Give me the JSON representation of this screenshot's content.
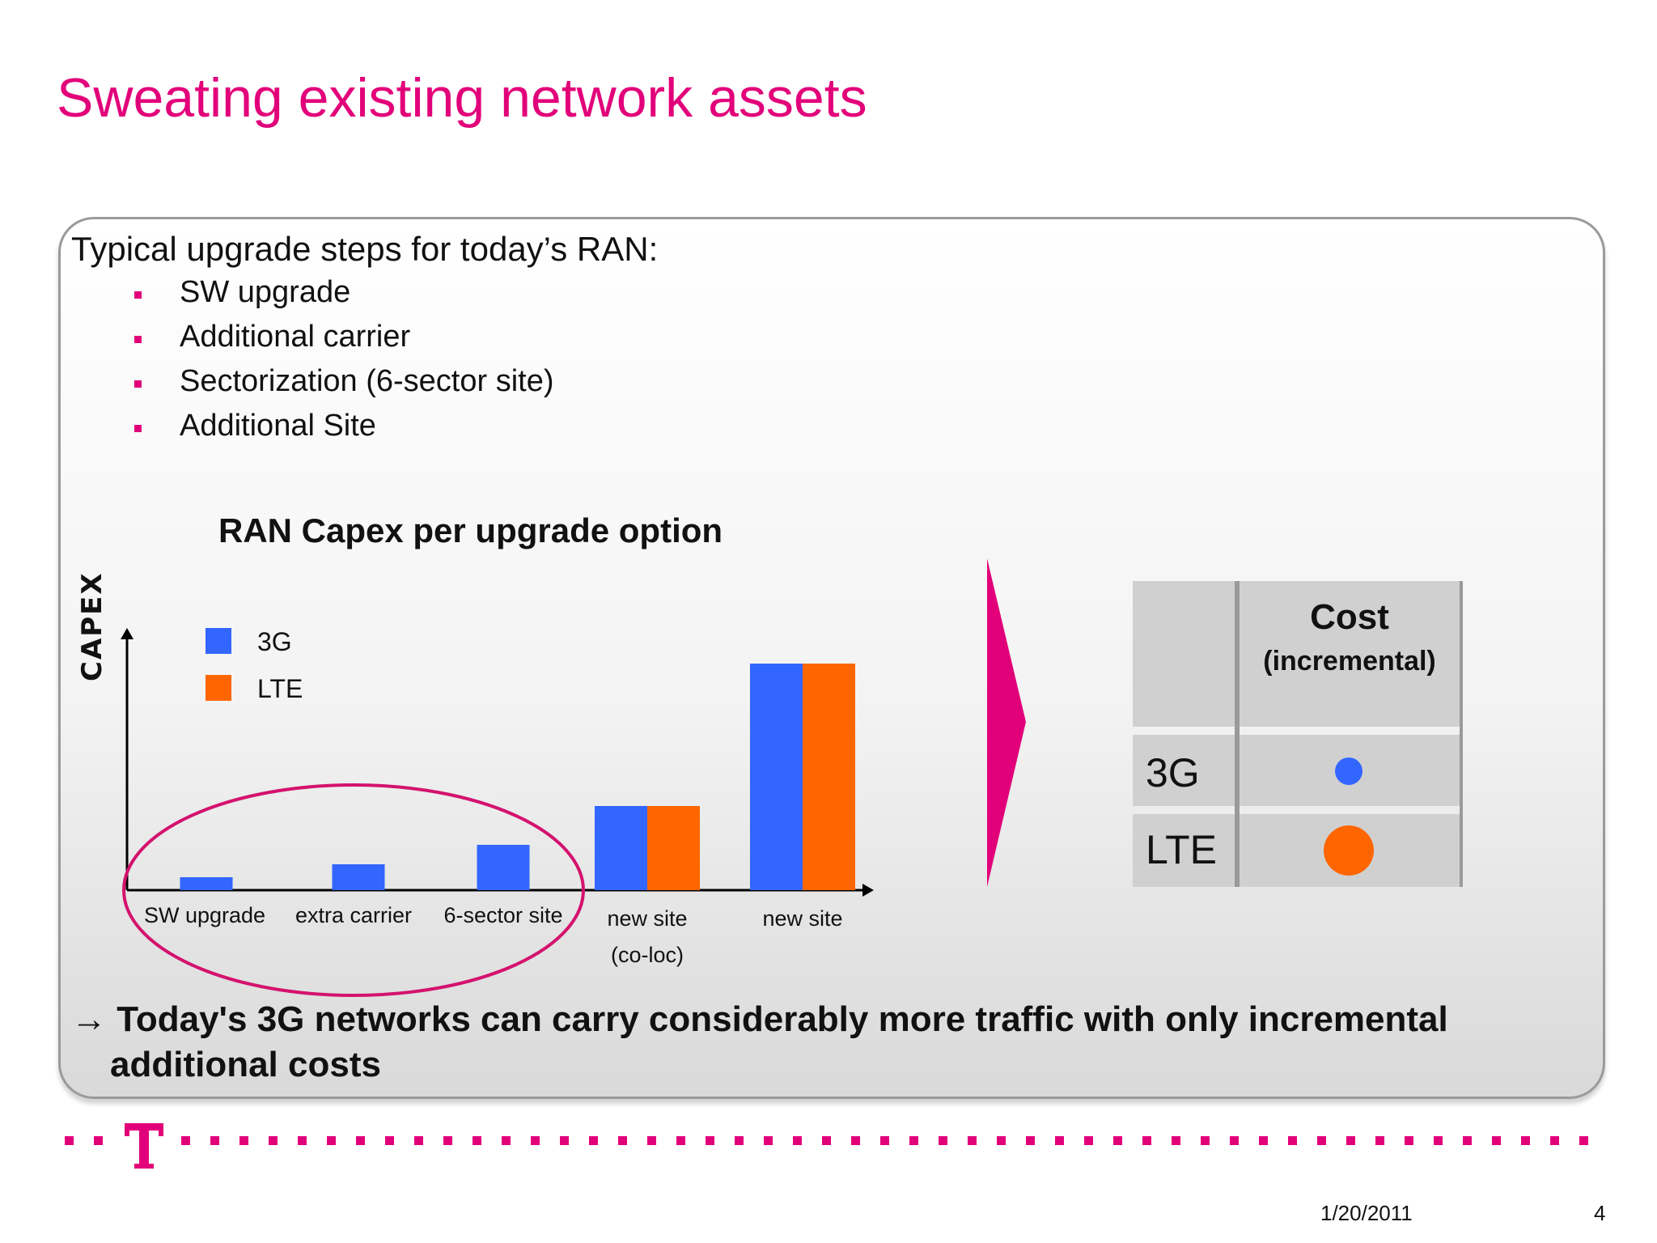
{
  "slide": {
    "title": "Sweating existing network assets",
    "intro": "Typical upgrade steps for today’s RAN:",
    "bullets": [
      "SW upgrade",
      "Additional carrier",
      "Sectorization (6-sector site)",
      "Additional Site"
    ],
    "conclusion_arrow": "→",
    "conclusion_line1": "Today's 3G networks can carry considerably more traffic with only incremental",
    "conclusion_line2": "additional costs",
    "date": "1/20/2011",
    "page": "4",
    "accent_color": "#e2007a"
  },
  "chart_data": {
    "type": "bar",
    "title": "RAN Capex per upgrade option",
    "ylabel": "CAPEX",
    "categories": [
      {
        "line1": "SW upgrade",
        "line2": ""
      },
      {
        "line1": "extra carrier",
        "line2": ""
      },
      {
        "line1": "6-sector site",
        "line2": ""
      },
      {
        "line1": "new site",
        "line2": "(co-loc)"
      },
      {
        "line1": "new site",
        "line2": ""
      }
    ],
    "series": [
      {
        "name": "3G",
        "color": "#3366ff",
        "values": [
          4,
          8,
          14,
          26,
          70
        ]
      },
      {
        "name": "LTE",
        "color": "#ff6600",
        "values": [
          0,
          0,
          0,
          26,
          70
        ]
      }
    ],
    "ylim": [
      0,
      75
    ],
    "highlight": "first three categories circled"
  },
  "cost_table": {
    "header": "Cost",
    "subheader": "(incremental)",
    "rows": [
      {
        "label": "3G",
        "marker": "small-blue-dot",
        "color": "#3366ff"
      },
      {
        "label": "LTE",
        "marker": "large-orange-dot",
        "color": "#ff6600"
      }
    ]
  }
}
